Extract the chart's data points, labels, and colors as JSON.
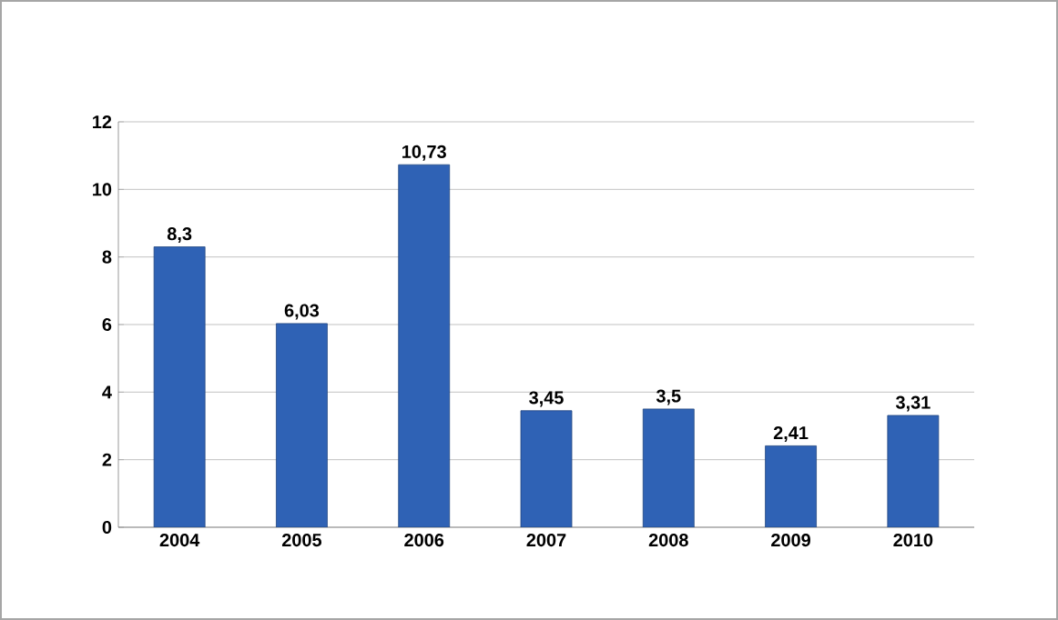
{
  "chart_data": {
    "type": "bar",
    "categories": [
      "2004",
      "2005",
      "2006",
      "2007",
      "2008",
      "2009",
      "2010"
    ],
    "values": [
      8.3,
      6.03,
      10.73,
      3.45,
      3.5,
      2.41,
      3.31
    ],
    "value_labels": [
      "8,3",
      "6,03",
      "10,73",
      "3,45",
      "3,5",
      "2,41",
      "3,31"
    ],
    "color": "#2f62b5",
    "ylim": [
      0,
      12
    ],
    "yticks": [
      0,
      2,
      4,
      6,
      8,
      10,
      12
    ],
    "grid": "y"
  }
}
